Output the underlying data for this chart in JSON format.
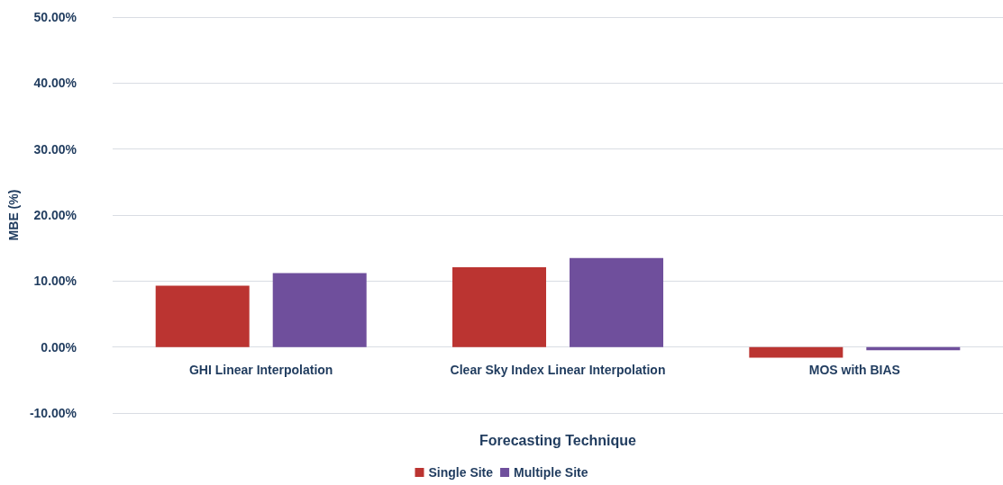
{
  "chart_data": {
    "type": "bar",
    "xlabel": "Forecasting Technique",
    "ylabel": "MBE (%)",
    "categories": [
      "GHI Linear Interpolation",
      "Clear Sky Index Linear Interpolation",
      "MOS with BIAS"
    ],
    "series": [
      {
        "name": "Single Site",
        "color": "#bb3431",
        "values": [
          9.3,
          12.1,
          -1.6
        ]
      },
      {
        "name": "Multiple Site",
        "color": "#6f4f9c",
        "values": [
          11.2,
          13.5,
          -0.5
        ]
      }
    ],
    "ylim": [
      -10,
      50
    ],
    "yticks": [
      {
        "value": -10,
        "label": "-10.00%"
      },
      {
        "value": 0,
        "label": "0.00%"
      },
      {
        "value": 10,
        "label": "10.00%"
      },
      {
        "value": 20,
        "label": "20.00%"
      },
      {
        "value": 30,
        "label": "30.00%"
      },
      {
        "value": 40,
        "label": "40.00%"
      },
      {
        "value": 50,
        "label": "50.00%"
      }
    ],
    "grid": "y",
    "legend": "bottom"
  }
}
